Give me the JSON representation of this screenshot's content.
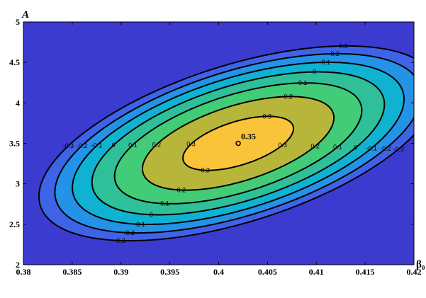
{
  "chart_data": {
    "type": "contour",
    "xlabel": "β₀",
    "ylabel": "A",
    "xlim": [
      0.38,
      0.42
    ],
    "ylim": [
      2,
      5
    ],
    "x_ticks": [
      "0.38",
      "0.385",
      "0.39",
      "0.395",
      "0.4",
      "0.405",
      "0.41",
      "0.415",
      "0.42"
    ],
    "y_ticks": [
      "2",
      "2.5",
      "3",
      "3.5",
      "4",
      "4.5",
      "5"
    ],
    "contour_levels": [
      "-0.3",
      "-0.2",
      "-0.1",
      "0",
      "0.1",
      "0.2",
      "0.3"
    ],
    "maximum": {
      "x": 0.402,
      "y": 3.5,
      "label": "0.35"
    },
    "grid": false,
    "colors": {
      "lt_-0.3": "#3b3bd0",
      "-0.3_-0.2": "#3f63e6",
      "-0.2_-0.1": "#2492e6",
      "-0.1_0": "#10b2d2",
      "0_0.1": "#2fc09a",
      "0.1_0.2": "#43cc78",
      "0.2_0.3": "#b8b63a",
      "0.3_0.35": "#f9c33a",
      "gt_0.35": "#f5f812"
    }
  }
}
